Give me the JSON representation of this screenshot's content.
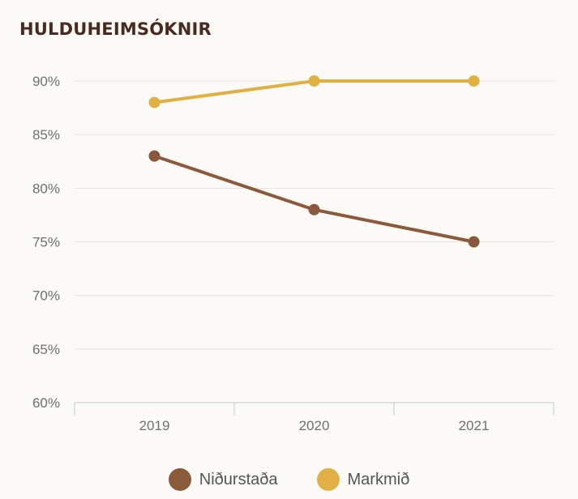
{
  "chart_data": {
    "type": "line",
    "title": "HULDUHEIMSÓKNIR",
    "x": [
      "2019",
      "2020",
      "2021"
    ],
    "series": [
      {
        "name": "Niðurstaða",
        "values": [
          83,
          78,
          75
        ],
        "color": "#8b5a3c"
      },
      {
        "name": "Markmið",
        "values": [
          88,
          90,
          90
        ],
        "color": "#e0b043"
      }
    ],
    "ylim": [
      60,
      90
    ],
    "yticks": [
      60,
      65,
      70,
      75,
      80,
      85,
      90
    ],
    "ytick_labels": [
      "60%",
      "65%",
      "70%",
      "75%",
      "80%",
      "85%",
      "90%"
    ],
    "grid": true,
    "legend_position": "bottom-center"
  }
}
